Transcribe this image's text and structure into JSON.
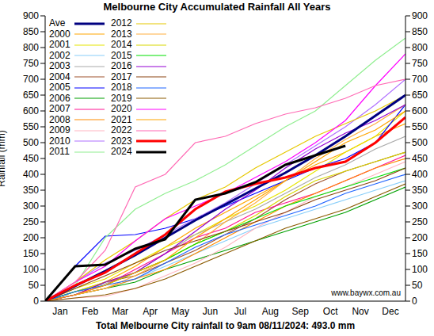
{
  "chart_data": {
    "type": "line",
    "title": "Melbourne City Accumulated Rainfall All Years",
    "ylabel": "Rainfall (mm)",
    "xlabel": "Total Melbourne City rainfall to 9am 08/11/2024: 493.0 mm",
    "annotation": "www.baywx.com.au",
    "x": [
      0,
      1,
      2,
      3,
      4,
      5,
      6,
      7,
      8,
      9,
      10,
      11,
      12
    ],
    "xlim": [
      0,
      12
    ],
    "xticks": [
      {
        "value": 0.5,
        "label": "Jan"
      },
      {
        "value": 1.5,
        "label": "Feb"
      },
      {
        "value": 2.5,
        "label": "Mar"
      },
      {
        "value": 3.5,
        "label": "Apr"
      },
      {
        "value": 4.5,
        "label": "May"
      },
      {
        "value": 5.5,
        "label": "Jun"
      },
      {
        "value": 6.5,
        "label": "Jul"
      },
      {
        "value": 7.5,
        "label": "Aug"
      },
      {
        "value": 8.5,
        "label": "Sep"
      },
      {
        "value": 9.5,
        "label": "Oct"
      },
      {
        "value": 10.5,
        "label": "Nov"
      },
      {
        "value": 11.5,
        "label": "Dec"
      }
    ],
    "ylim": [
      0,
      900
    ],
    "yticks": [
      0,
      50,
      100,
      150,
      200,
      250,
      300,
      350,
      400,
      450,
      500,
      550,
      600,
      650,
      700,
      750,
      800,
      850,
      900
    ],
    "y2lim": [
      0,
      900
    ],
    "y2ticks": [
      0,
      50,
      100,
      150,
      200,
      250,
      300,
      350,
      400,
      450,
      500,
      550,
      600,
      650,
      700,
      750,
      800,
      850,
      900
    ],
    "grid": false,
    "legend": "upper left",
    "series": [
      {
        "name": "Ave",
        "color": "#000080",
        "line_style": "thick",
        "values": [
          0,
          48,
          95,
          145,
          200,
          255,
          305,
          355,
          405,
          460,
          520,
          585,
          650
        ]
      },
      {
        "name": "2000",
        "color": "#ffa500",
        "values": [
          0,
          30,
          60,
          110,
          170,
          230,
          280,
          330,
          380,
          430,
          470,
          520,
          560
        ]
      },
      {
        "name": "2001",
        "color": "#e6e600",
        "values": [
          0,
          40,
          70,
          120,
          170,
          210,
          260,
          300,
          350,
          410,
          470,
          520,
          600
        ]
      },
      {
        "name": "2002",
        "color": "#87cefa",
        "values": [
          0,
          20,
          40,
          70,
          110,
          150,
          190,
          230,
          260,
          290,
          320,
          350,
          380
        ]
      },
      {
        "name": "2003",
        "color": "#a9a9a9",
        "values": [
          0,
          30,
          55,
          90,
          150,
          210,
          250,
          290,
          340,
          390,
          430,
          480,
          520
        ]
      },
      {
        "name": "2004",
        "color": "#a0522d",
        "values": [
          0,
          20,
          60,
          80,
          120,
          160,
          210,
          260,
          320,
          370,
          410,
          440,
          470
        ]
      },
      {
        "name": "2005",
        "color": "#0000ff",
        "values": [
          0,
          110,
          205,
          210,
          230,
          260,
          300,
          340,
          380,
          420,
          450,
          500,
          620
        ]
      },
      {
        "name": "2006",
        "color": "#00a000",
        "values": [
          0,
          20,
          40,
          60,
          100,
          130,
          160,
          190,
          220,
          250,
          280,
          320,
          360
        ]
      },
      {
        "name": "2007",
        "color": "#ff1493",
        "values": [
          0,
          20,
          50,
          100,
          150,
          200,
          230,
          280,
          310,
          340,
          380,
          420,
          460
        ]
      },
      {
        "name": "2008",
        "color": "#ff8c00",
        "values": [
          0,
          20,
          40,
          70,
          100,
          150,
          200,
          250,
          300,
          340,
          380,
          420,
          450
        ]
      },
      {
        "name": "2009",
        "color": "#ffb6c1",
        "values": [
          0,
          10,
          15,
          40,
          80,
          120,
          170,
          230,
          280,
          330,
          360,
          400,
          440
        ]
      },
      {
        "name": "2010",
        "color": "#b070ff",
        "values": [
          0,
          60,
          120,
          160,
          210,
          260,
          310,
          370,
          430,
          490,
          550,
          620,
          700
        ]
      },
      {
        "name": "2011",
        "color": "#90ee90",
        "values": [
          0,
          50,
          200,
          290,
          340,
          380,
          430,
          490,
          550,
          600,
          680,
          760,
          830
        ]
      },
      {
        "name": "2012",
        "color": "#e6c800",
        "values": [
          0,
          60,
          130,
          190,
          260,
          320,
          360,
          420,
          470,
          520,
          560,
          600,
          650
        ]
      },
      {
        "name": "2013",
        "color": "#ffb040",
        "values": [
          0,
          20,
          40,
          80,
          130,
          180,
          250,
          310,
          380,
          450,
          510,
          560,
          620
        ]
      },
      {
        "name": "2014",
        "color": "#d8d800",
        "values": [
          0,
          30,
          60,
          90,
          130,
          180,
          220,
          270,
          330,
          380,
          410,
          440,
          470
        ]
      },
      {
        "name": "2015",
        "color": "#00e000",
        "values": [
          0,
          30,
          50,
          90,
          130,
          180,
          220,
          260,
          300,
          330,
          360,
          390,
          420
        ]
      },
      {
        "name": "2016",
        "color": "#9400d3",
        "values": [
          0,
          20,
          60,
          90,
          150,
          220,
          290,
          350,
          420,
          480,
          530,
          570,
          620
        ]
      },
      {
        "name": "2017",
        "color": "#8b4513",
        "values": [
          0,
          40,
          80,
          120,
          160,
          190,
          220,
          250,
          280,
          320,
          350,
          380,
          420
        ]
      },
      {
        "name": "2018",
        "color": "#1e64ff",
        "values": [
          0,
          30,
          50,
          70,
          120,
          170,
          210,
          240,
          270,
          300,
          340,
          370,
          400
        ]
      },
      {
        "name": "2019",
        "color": "#8b5a00",
        "values": [
          0,
          10,
          20,
          40,
          70,
          110,
          150,
          190,
          230,
          260,
          290,
          330,
          370
        ]
      },
      {
        "name": "2020",
        "color": "#ff00ff",
        "values": [
          0,
          60,
          110,
          190,
          260,
          300,
          340,
          390,
          440,
          500,
          570,
          680,
          780
        ]
      },
      {
        "name": "2021",
        "color": "#ffa500",
        "values": [
          0,
          20,
          50,
          90,
          130,
          200,
          260,
          320,
          380,
          440,
          500,
          540,
          600
        ]
      },
      {
        "name": "2022",
        "color": "#ff69b4",
        "values": [
          0,
          60,
          160,
          360,
          400,
          500,
          520,
          560,
          590,
          610,
          640,
          680,
          700
        ]
      },
      {
        "name": "2023",
        "color": "#ff0000",
        "line_style": "thick",
        "values": [
          0,
          50,
          90,
          150,
          210,
          290,
          345,
          370,
          390,
          420,
          440,
          500,
          580
        ]
      },
      {
        "name": "2024",
        "color": "#000000",
        "line_style": "thick",
        "values": [
          0,
          110,
          115,
          165,
          195,
          320,
          340,
          375,
          430,
          460,
          490,
          null,
          null
        ]
      }
    ]
  }
}
